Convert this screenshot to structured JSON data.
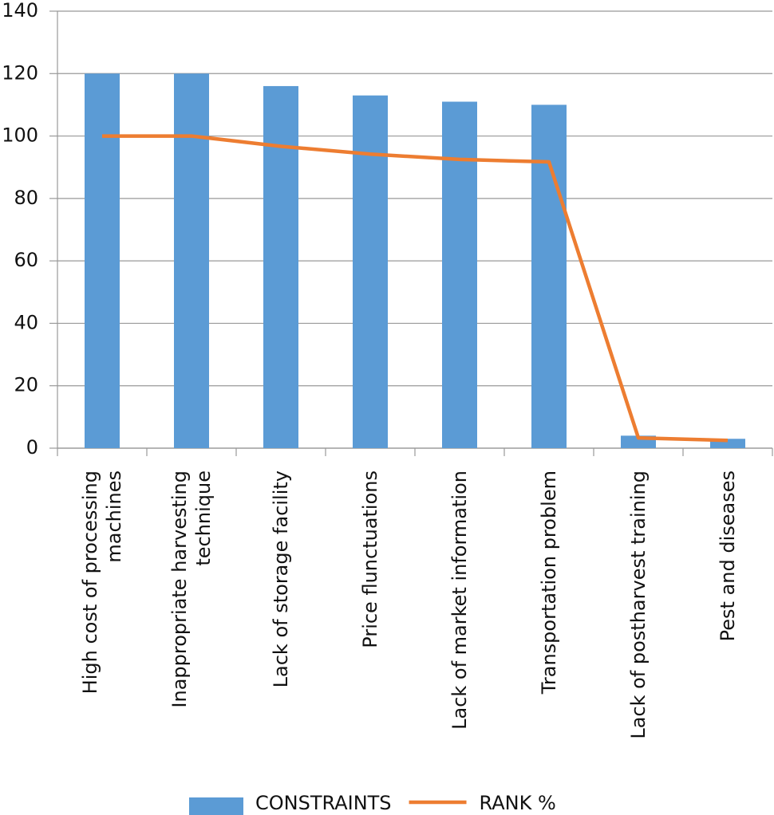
{
  "chart_data": {
    "type": "bar_line",
    "categories": [
      "High cost of processing machines",
      "Inappropriate harvesting technique",
      "Lack of storage facility",
      "Price flunctuations",
      "Lack of market information",
      "Transportation problem",
      "Lack of postharvest training",
      "Pest and diseases"
    ],
    "series": [
      {
        "name": "CONSTRAINTS",
        "type": "bar",
        "color": "#5b9bd5",
        "values": [
          120,
          120,
          116,
          113,
          111,
          110,
          4,
          3
        ]
      },
      {
        "name": "RANK %",
        "type": "line",
        "color": "#ed7d31",
        "values": [
          100,
          100,
          96.7,
          94.2,
          92.5,
          91.7,
          3.3,
          2.5
        ]
      }
    ],
    "ylim": [
      0,
      140
    ],
    "yticks": [
      0,
      20,
      40,
      60,
      80,
      100,
      120,
      140
    ],
    "grid": true
  }
}
